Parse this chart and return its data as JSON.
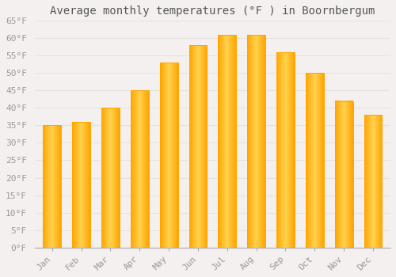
{
  "title": "Average monthly temperatures (°F ) in Boornbergum",
  "months": [
    "Jan",
    "Feb",
    "Mar",
    "Apr",
    "May",
    "Jun",
    "Jul",
    "Aug",
    "Sep",
    "Oct",
    "Nov",
    "Dec"
  ],
  "values": [
    35,
    36,
    40,
    45,
    53,
    58,
    61,
    61,
    56,
    50,
    42,
    38
  ],
  "bar_color_light": "#FFD060",
  "bar_color_dark": "#FFA500",
  "background_color": "#F5F0F0",
  "grid_color": "#E8E0E0",
  "ylim": [
    0,
    65
  ],
  "yticks": [
    0,
    5,
    10,
    15,
    20,
    25,
    30,
    35,
    40,
    45,
    50,
    55,
    60,
    65
  ],
  "ytick_labels": [
    "0°F",
    "5°F",
    "10°F",
    "15°F",
    "20°F",
    "25°F",
    "30°F",
    "35°F",
    "40°F",
    "45°F",
    "50°F",
    "55°F",
    "60°F",
    "65°F"
  ],
  "title_fontsize": 10,
  "tick_fontsize": 8,
  "title_color": "#555555",
  "tick_color": "#999999"
}
